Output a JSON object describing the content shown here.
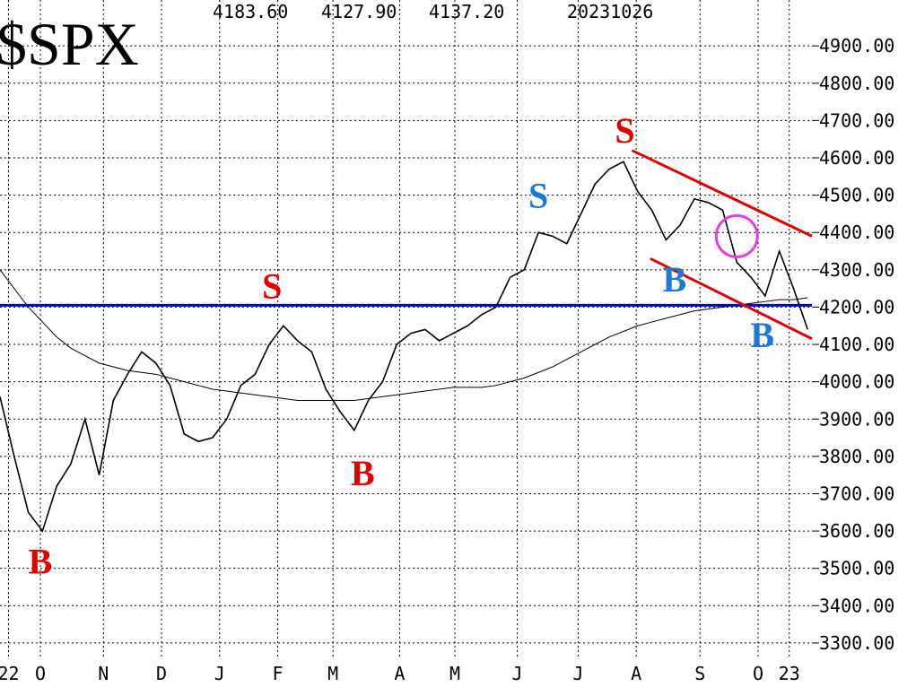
{
  "chart_data": {
    "type": "line",
    "title": "$SPX",
    "header_values": [
      "4183.60",
      "4127.90",
      "4137.20",
      "20231026"
    ],
    "x": [
      0,
      1,
      2,
      3,
      4,
      5,
      6,
      7,
      8,
      9,
      10,
      11,
      12,
      13,
      14,
      15,
      16,
      17,
      18,
      19,
      20,
      21,
      22,
      23,
      24,
      25,
      26,
      27,
      28,
      29,
      30,
      31,
      32,
      33,
      34,
      35,
      36,
      37,
      38,
      39,
      40,
      41,
      42,
      43,
      44,
      45,
      46,
      47,
      48,
      49,
      50,
      51,
      52,
      53,
      54,
      55,
      56,
      57
    ],
    "series": [
      {
        "color": "#000000",
        "width": 1.6,
        "values": [
          3960,
          3800,
          3650,
          3600,
          3720,
          3780,
          3900,
          3750,
          3950,
          4020,
          4080,
          4050,
          3990,
          3860,
          3840,
          3850,
          3900,
          3990,
          4020,
          4100,
          4150,
          4110,
          4080,
          3980,
          3920,
          3870,
          3950,
          4000,
          4100,
          4130,
          4140,
          4110,
          4130,
          4150,
          4180,
          4200,
          4280,
          4300,
          4400,
          4390,
          4370,
          4450,
          4530,
          4570,
          4590,
          4510,
          4460,
          4380,
          4420,
          4490,
          4480,
          4460,
          4320,
          4280,
          4230,
          4350,
          4250,
          4140
        ]
      },
      {
        "color": "#000000",
        "width": 1,
        "values": [
          4300,
          4250,
          4200,
          4160,
          4120,
          4090,
          4070,
          4050,
          4040,
          4030,
          4025,
          4020,
          4010,
          4000,
          3990,
          3980,
          3975,
          3970,
          3965,
          3960,
          3955,
          3950,
          3950,
          3950,
          3950,
          3950,
          3955,
          3960,
          3965,
          3970,
          3975,
          3980,
          3985,
          3985,
          3985,
          3990,
          4000,
          4010,
          4025,
          4040,
          4060,
          4080,
          4100,
          4120,
          4135,
          4150,
          4160,
          4170,
          4180,
          4190,
          4195,
          4200,
          4205,
          4210,
          4215,
          4220,
          4220,
          4225
        ]
      }
    ],
    "lines": [
      {
        "color": "#0000c0",
        "x": [
          0,
          57.3
        ],
        "values": [
          4205,
          4205
        ]
      },
      {
        "color": "#e00000",
        "x": [
          44.6,
          57.3
        ],
        "values": [
          4620,
          4390
        ]
      },
      {
        "color": "#e00000",
        "x": [
          45.9,
          57.3
        ],
        "values": [
          4330,
          4115
        ]
      }
    ],
    "annotations": [
      {
        "text": "B",
        "color": "#e00000",
        "x": 2.85,
        "y": 3520
      },
      {
        "text": "S",
        "color": "#e00000",
        "x": 19.2,
        "y": 4258
      },
      {
        "text": "B",
        "color": "#e00000",
        "x": 25.6,
        "y": 3756
      },
      {
        "text": "S",
        "color": "#1e78d8",
        "x": 38,
        "y": 4500
      },
      {
        "text": "S",
        "color": "#e00000",
        "x": 44.1,
        "y": 4674
      },
      {
        "text": "B",
        "color": "#1e78d8",
        "x": 47.6,
        "y": 4275
      },
      {
        "text": "B",
        "color": "#1e78d8",
        "x": 53.8,
        "y": 4126
      }
    ],
    "circle": {
      "color": "#e040e0",
      "x": 52,
      "y": 4390
    },
    "xlim": [
      0,
      57.3
    ],
    "ylim": [
      3182,
      5023
    ],
    "xticks": [
      {
        "value": 0.6,
        "label": "22"
      },
      {
        "value": 2.85,
        "label": "O"
      },
      {
        "value": 7.3,
        "label": "N"
      },
      {
        "value": 11.4,
        "label": "D"
      },
      {
        "value": 15.5,
        "label": "J"
      },
      {
        "value": 19.6,
        "label": "F"
      },
      {
        "value": 23.5,
        "label": "M"
      },
      {
        "value": 28.2,
        "label": "A"
      },
      {
        "value": 32.1,
        "label": "M"
      },
      {
        "value": 36.5,
        "label": "J"
      },
      {
        "value": 40.8,
        "label": "J"
      },
      {
        "value": 44.9,
        "label": "A"
      },
      {
        "value": 49.4,
        "label": "S"
      },
      {
        "value": 53.5,
        "label": "O"
      },
      {
        "value": 55.7,
        "label": "23"
      }
    ],
    "yticks": [
      {
        "value": 3300,
        "label": "3300.00"
      },
      {
        "value": 3400,
        "label": "3400.00"
      },
      {
        "value": 3500,
        "label": "3500.00"
      },
      {
        "value": 3600,
        "label": "3600.00"
      },
      {
        "value": 3700,
        "label": "3700.00"
      },
      {
        "value": 3800,
        "label": "3800.00"
      },
      {
        "value": 3900,
        "label": "3900.00"
      },
      {
        "value": 4000,
        "label": "4000.00"
      },
      {
        "value": 4100,
        "label": "4100.00"
      },
      {
        "value": 4200,
        "label": "4200.00"
      },
      {
        "value": 4300,
        "label": "4300.00"
      },
      {
        "value": 4400,
        "label": "4400.00"
      },
      {
        "value": 4500,
        "label": "4500.00"
      },
      {
        "value": 4600,
        "label": "4600.00"
      },
      {
        "value": 4700,
        "label": "4700.00"
      },
      {
        "value": 4800,
        "label": "4800.00"
      },
      {
        "value": 4900,
        "label": "4900.00"
      }
    ],
    "grid": true
  }
}
